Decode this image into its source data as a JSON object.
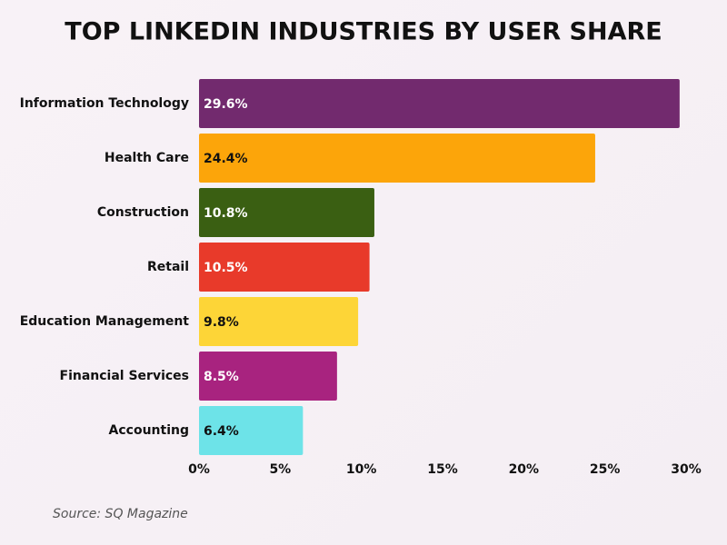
{
  "chart_data": {
    "type": "bar",
    "orientation": "horizontal",
    "title": "TOP LINKEDIN INDUSTRIES BY USER SHARE",
    "categories": [
      "Information Technology",
      "Health Care",
      "Construction",
      "Retail",
      "Education Management",
      "Financial Services",
      "Accounting"
    ],
    "values": [
      29.6,
      24.4,
      10.8,
      10.5,
      9.8,
      8.5,
      6.4
    ],
    "value_labels": [
      "29.6%",
      "24.4%",
      "10.8%",
      "10.5%",
      "9.8%",
      "8.5%",
      "6.4%"
    ],
    "colors": [
      "#722a6e",
      "#fca50a",
      "#3a5f12",
      "#e83a2a",
      "#fdd537",
      "#a8237f",
      "#6de3e8"
    ],
    "xlim": [
      0,
      30
    ],
    "xticks": [
      {
        "value": 0,
        "label": "0%"
      },
      {
        "value": 5,
        "label": "5%"
      },
      {
        "value": 10,
        "label": "10%"
      },
      {
        "value": 15,
        "label": "15%"
      },
      {
        "value": 20,
        "label": "20%"
      },
      {
        "value": 25,
        "label": "25%"
      },
      {
        "value": 30,
        "label": "30%"
      }
    ],
    "grid": false,
    "source": "Source: SQ Magazine"
  }
}
